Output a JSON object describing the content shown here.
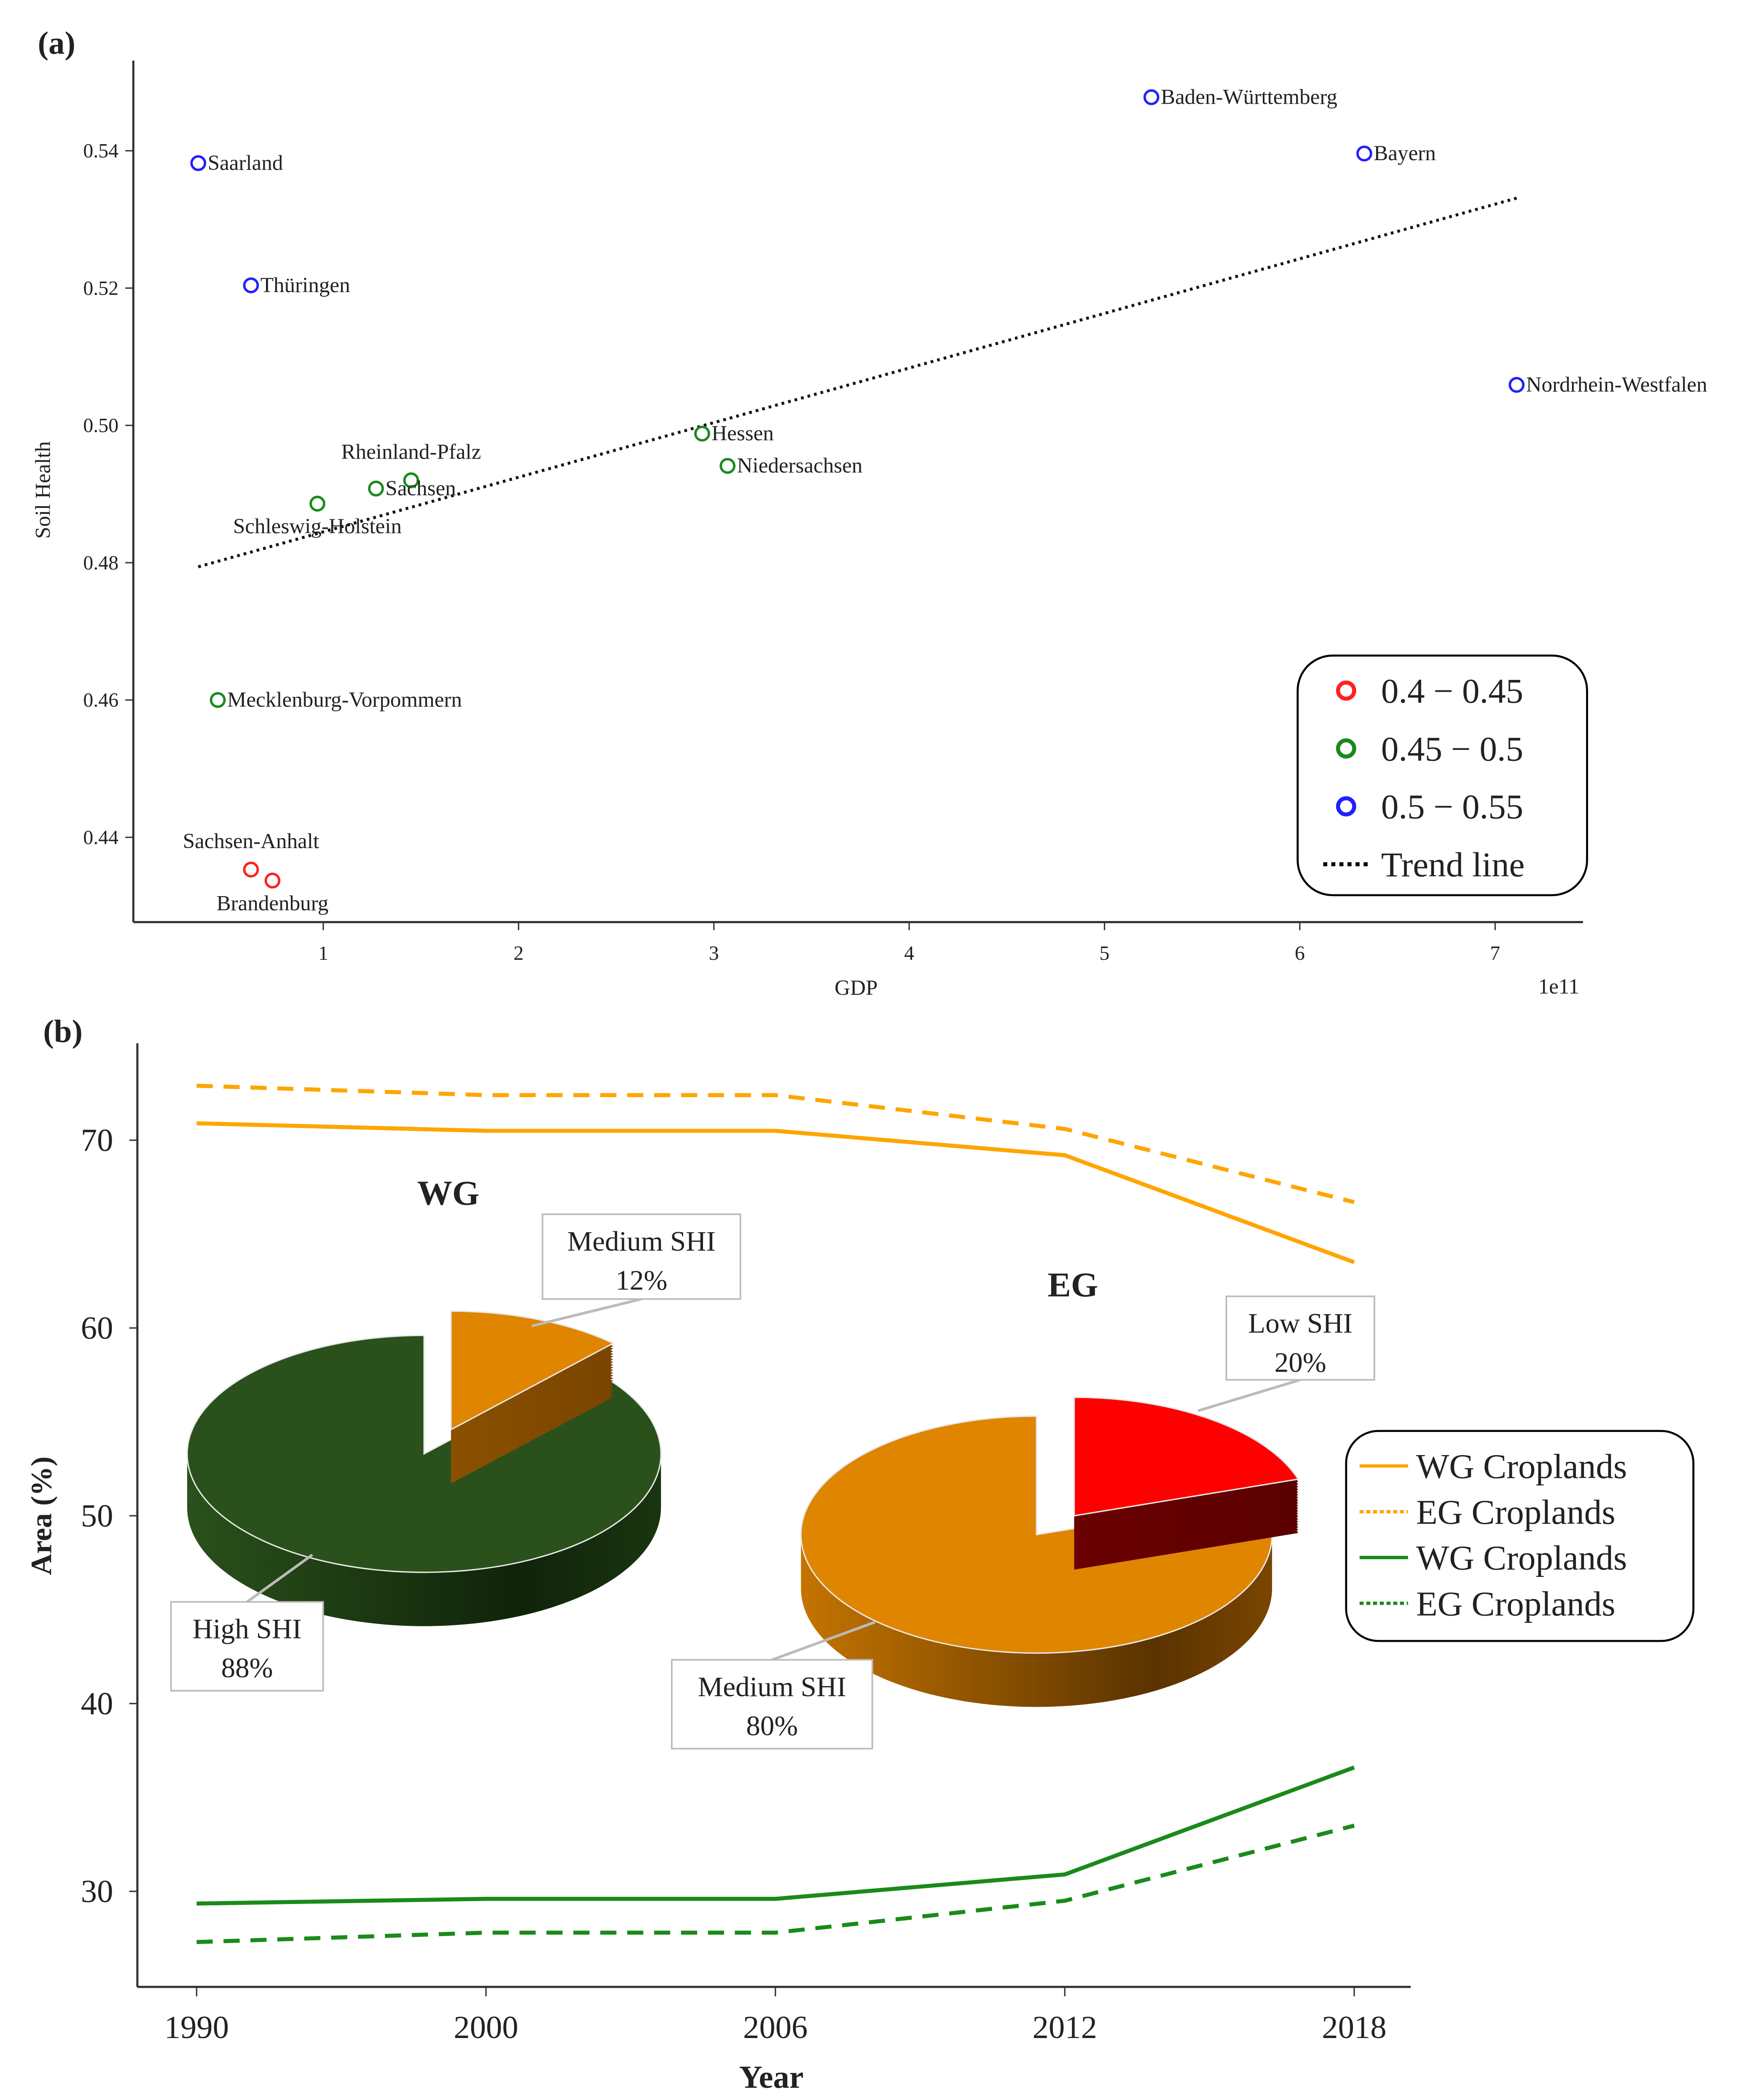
{
  "chart_data": [
    {
      "panel_label": "(a)",
      "type": "scatter",
      "xlabel": "GDP",
      "ylabel": "Soil Health",
      "x_offset_label": "1e11",
      "xlim": [
        0.02,
        7.45
      ],
      "ylim": [
        0.4276,
        0.5533
      ],
      "xticks": [
        1,
        2,
        3,
        4,
        5,
        6,
        7
      ],
      "yticks": [
        "0.44",
        "0.46",
        "0.48",
        "0.50",
        "0.52",
        "0.54"
      ],
      "points": [
        {
          "label": "Saarland",
          "x": 0.36,
          "y": 0.5382,
          "class": 2,
          "label_pos": "right"
        },
        {
          "label": "Thüringen",
          "x": 0.63,
          "y": 0.5204,
          "class": 2,
          "label_pos": "right"
        },
        {
          "label": "Baden-Württemberg",
          "x": 5.24,
          "y": 0.5478,
          "class": 2,
          "label_pos": "right"
        },
        {
          "label": "Bayern",
          "x": 6.33,
          "y": 0.5396,
          "class": 2,
          "label_pos": "right"
        },
        {
          "label": "Nordrhein-Westfalen",
          "x": 7.11,
          "y": 0.5059,
          "class": 2,
          "label_pos": "right"
        },
        {
          "label": "Hessen",
          "x": 2.94,
          "y": 0.4988,
          "class": 1,
          "label_pos": "right"
        },
        {
          "label": "Niedersachsen",
          "x": 3.07,
          "y": 0.4941,
          "class": 1,
          "label_pos": "right"
        },
        {
          "label": "Rheinland-Pfalz",
          "x": 1.45,
          "y": 0.492,
          "class": 1,
          "label_pos": "above"
        },
        {
          "label": "Sachsen",
          "x": 1.27,
          "y": 0.4908,
          "class": 1,
          "label_pos": "right"
        },
        {
          "label": "Schleswig-Holstein",
          "x": 0.97,
          "y": 0.4886,
          "class": 1,
          "label_pos": "right"
        },
        {
          "label": "Mecklenburg-Vorpommern",
          "x": 0.46,
          "y": 0.46,
          "class": 1,
          "label_pos": "right"
        },
        {
          "label": "Sachsen-Anhalt",
          "x": 0.63,
          "y": 0.4353,
          "class": 0,
          "label_pos": "above"
        },
        {
          "label": "Brandenburg",
          "x": 0.74,
          "y": 0.4337,
          "class": 0,
          "label_pos": "below"
        }
      ],
      "trend_line": {
        "x": [
          0.36,
          7.11
        ],
        "y": [
          0.4794,
          0.5331
        ]
      },
      "legend": {
        "placement": "bottom-right",
        "entries": [
          {
            "label": "0.4 − 0.45",
            "color": "#ff2020",
            "kind": "circle"
          },
          {
            "label": "0.45 − 0.5",
            "color": "#1a8a1a",
            "kind": "circle"
          },
          {
            "label": "0.5 − 0.55",
            "color": "#2020ff",
            "kind": "circle"
          },
          {
            "label": "Trend line",
            "color": "#000000",
            "kind": "dotted"
          }
        ]
      }
    },
    {
      "panel_label": "(b)",
      "type": "line",
      "xlabel": "Year",
      "ylabel": "Area (%)",
      "categories": [
        "1990",
        "2000",
        "2006",
        "2012",
        "2018"
      ],
      "ylim": [
        24.8,
        75.5
      ],
      "yticks": [
        30,
        40,
        50,
        60,
        70
      ],
      "series": [
        {
          "name": "WG Croplands",
          "color": "#ffa500",
          "dash": "solid",
          "values": [
            70.9,
            70.5,
            70.5,
            69.2,
            63.5
          ]
        },
        {
          "name": "EG Croplands",
          "color": "#ffa500",
          "dash": "dashed",
          "values": [
            72.9,
            72.4,
            72.4,
            70.6,
            66.7
          ]
        },
        {
          "name": "WG Croplands",
          "color": "#1a8a1a",
          "dash": "solid",
          "values": [
            29.35,
            29.6,
            29.6,
            30.9,
            36.6
          ]
        },
        {
          "name": "EG Croplands",
          "color": "#1a8a1a",
          "dash": "dashed",
          "values": [
            27.3,
            27.8,
            27.8,
            29.5,
            33.5
          ]
        }
      ],
      "legend": {
        "placement": "right"
      },
      "pies": [
        {
          "title": "WG",
          "slices": [
            {
              "label": "High SHI",
              "value": 88,
              "text": "88%",
              "color": "#2a511b",
              "exploded": false
            },
            {
              "label": "Medium SHI",
              "value": 12,
              "text": "12%",
              "color": "#e08500",
              "exploded": true
            }
          ]
        },
        {
          "title": "EG",
          "slices": [
            {
              "label": "Medium SHI",
              "value": 80,
              "text": "80%",
              "color": "#e08500",
              "exploded": false
            },
            {
              "label": "Low SHI",
              "value": 20,
              "text": "20%",
              "color": "#ff0000",
              "exploded": true
            }
          ]
        }
      ]
    }
  ]
}
